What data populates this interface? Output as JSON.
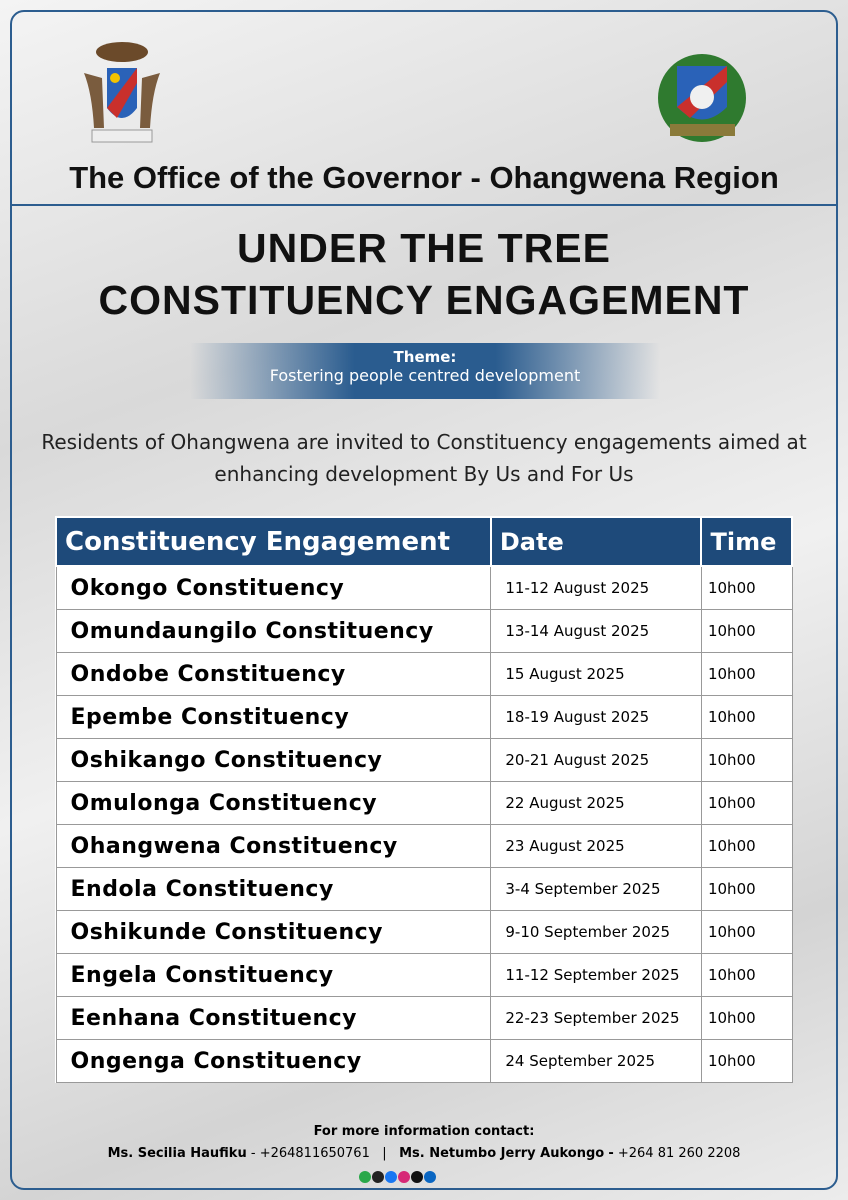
{
  "header": {
    "organization": "The Office of the Governor - Ohangwena Region"
  },
  "title": "UNDER THE TREE CONSTITUENCY ENGAGEMENT",
  "theme": {
    "label": "Theme:",
    "text": "Fostering people centred development"
  },
  "intro": "Residents of Ohangwena are invited to Constituency engagements aimed at enhancing development By Us and For Us",
  "table": {
    "columns": [
      "Constituency Engagement",
      "Date",
      "Time"
    ],
    "rows": [
      [
        "Okongo Constituency",
        "11-12 August 2025",
        "10h00"
      ],
      [
        "Omundaungilo Constituency",
        "13-14 August 2025",
        "10h00"
      ],
      [
        "Ondobe Constituency",
        "15 August 2025",
        "10h00"
      ],
      [
        "Epembe Constituency",
        "18-19 August 2025",
        "10h00"
      ],
      [
        "Oshikango Constituency",
        "20-21 August 2025",
        "10h00"
      ],
      [
        "Omulonga Constituency",
        "22 August 2025",
        "10h00"
      ],
      [
        "Ohangwena Constituency",
        "23 August 2025",
        "10h00"
      ],
      [
        "Endola Constituency",
        "3-4 September 2025",
        "10h00"
      ],
      [
        "Oshikunde Constituency",
        "9-10 September 2025",
        "10h00"
      ],
      [
        "Engela Constituency",
        "11-12 September 2025",
        "10h00"
      ],
      [
        "Eenhana Constituency",
        "22-23 September 2025",
        "10h00"
      ],
      [
        "Ongenga Constituency",
        "24 September 2025",
        "10h00"
      ]
    ]
  },
  "footer": {
    "heading": "For more information contact:",
    "separator": "|",
    "contacts": [
      {
        "name": "Ms. Secilia Haufiku",
        "dash": "-",
        "phone": "+264811650761"
      },
      {
        "name": "Ms. Netumbo Jerry Aukongo",
        "dash": "-",
        "phone": "+264 81 260 2208"
      }
    ]
  }
}
